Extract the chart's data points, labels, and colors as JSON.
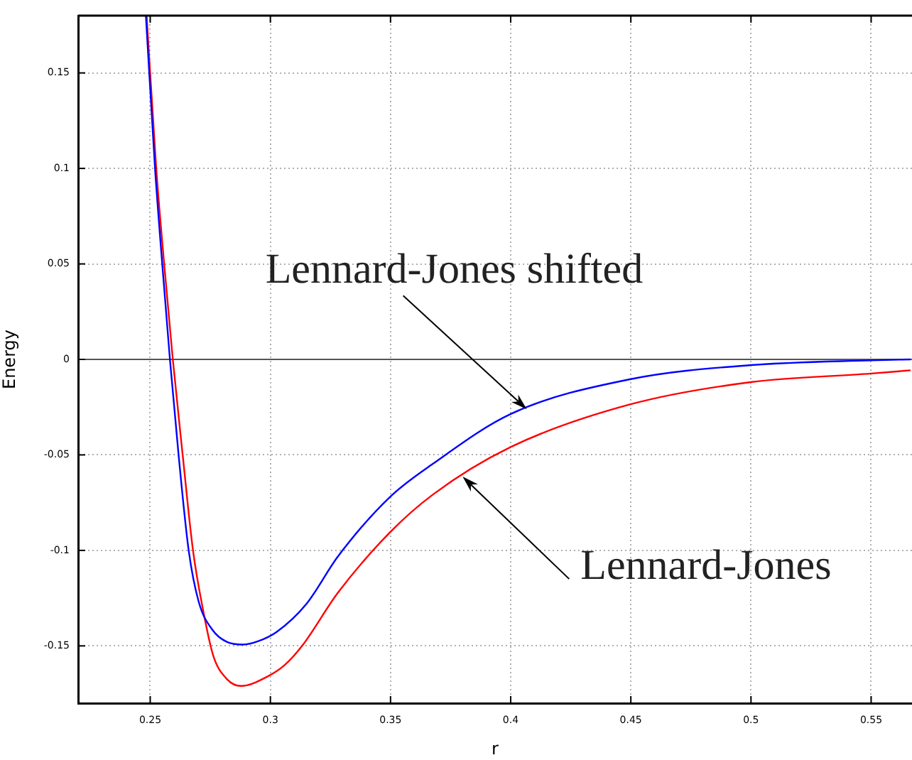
{
  "chart_data": {
    "type": "line",
    "xlabel": "r",
    "ylabel": "Energy",
    "xlim": [
      0.22,
      0.567
    ],
    "ylim": [
      -0.18,
      0.18
    ],
    "xticks": [
      0.25,
      0.3,
      0.35,
      0.4,
      0.45,
      0.5,
      0.55
    ],
    "yticks": [
      -0.15,
      -0.1,
      -0.05,
      0,
      0.05,
      0.1,
      0.15
    ],
    "grid": true,
    "legend": false,
    "marker": "none",
    "line_style": "solid",
    "ref_lines": [
      {
        "axis": "y",
        "value": 0,
        "color": "#555555"
      }
    ],
    "annotations": [
      {
        "text": "Lennard-Jones shifted",
        "x": 0.4067,
        "y": -0.0261
      },
      {
        "text": "Lennard-Jones",
        "x": 0.38,
        "y": -0.0614
      }
    ],
    "series": [
      {
        "color": "#0000ff",
        "x": [
          0.2482,
          0.252,
          0.255,
          0.2582,
          0.2618,
          0.266,
          0.2702,
          0.276,
          0.282,
          0.2885,
          0.295,
          0.3027,
          0.315,
          0.3282,
          0.3498,
          0.3677,
          0.4,
          0.4496,
          0.4999,
          0.55,
          0.5664
        ],
        "values": [
          0.18,
          0.1,
          0.05,
          0,
          -0.05,
          -0.1,
          -0.127,
          -0.1418,
          -0.148,
          -0.1493,
          -0.1475,
          -0.1426,
          -0.128,
          -0.103,
          -0.072,
          -0.0546,
          -0.0286,
          -0.0104,
          -0.003,
          -0.0005,
          0
        ]
      },
      {
        "color": "#ff0000",
        "x": [
          0.2485,
          0.2525,
          0.2558,
          0.2594,
          0.2635,
          0.2678,
          0.2718,
          0.2762,
          0.282,
          0.2878,
          0.2986,
          0.306,
          0.3132,
          0.3282,
          0.3498,
          0.3677,
          0.4,
          0.4496,
          0.4999,
          0.55,
          0.5664
        ],
        "values": [
          0.18,
          0.1,
          0.05,
          0,
          -0.05,
          -0.1,
          -0.13,
          -0.155,
          -0.1675,
          -0.171,
          -0.1662,
          -0.16,
          -0.15,
          -0.122,
          -0.0905,
          -0.0707,
          -0.0459,
          -0.0236,
          -0.0119,
          -0.0074,
          -0.0057
        ]
      }
    ]
  }
}
